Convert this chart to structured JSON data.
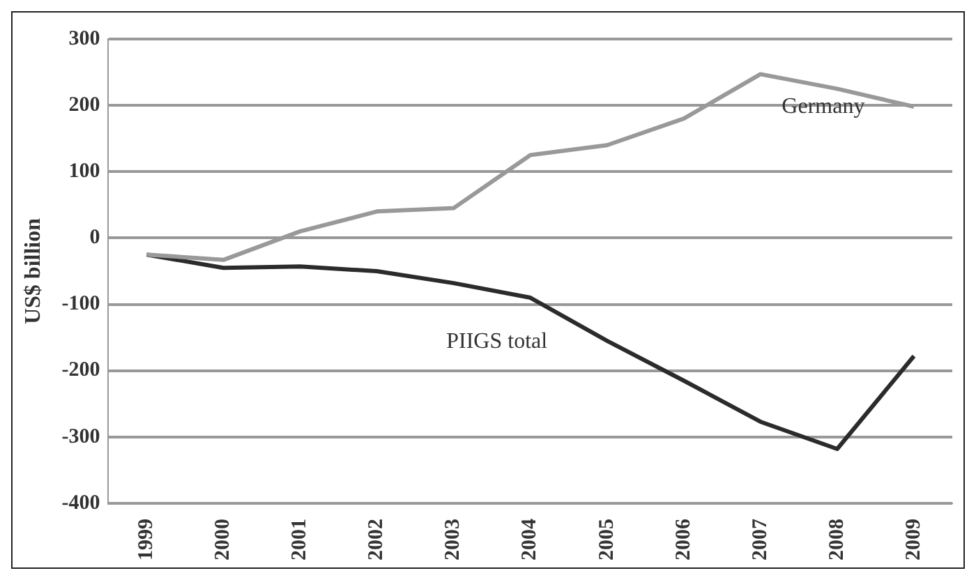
{
  "chart_data": {
    "type": "line",
    "ylabel": "US$ billion",
    "categories": [
      "1999",
      "2000",
      "2001",
      "2002",
      "2003",
      "2004",
      "2005",
      "2006",
      "2007",
      "2008",
      "2009"
    ],
    "series": [
      {
        "name": "Germany",
        "color": "#999999",
        "values": [
          -25,
          -33,
          10,
          40,
          45,
          125,
          140,
          180,
          247,
          225,
          198
        ]
      },
      {
        "name": "PIIGS total",
        "color": "#2b2b2b",
        "values": [
          -25,
          -45,
          -43,
          -50,
          -68,
          -90,
          -155,
          -215,
          -277,
          -318,
          -178
        ]
      }
    ],
    "ylim": [
      -400,
      300
    ],
    "yticks": [
      -400,
      -300,
      -200,
      -100,
      0,
      100,
      200,
      300
    ],
    "grid": "y",
    "legend": false,
    "marker": "none",
    "line_style": "solid"
  }
}
